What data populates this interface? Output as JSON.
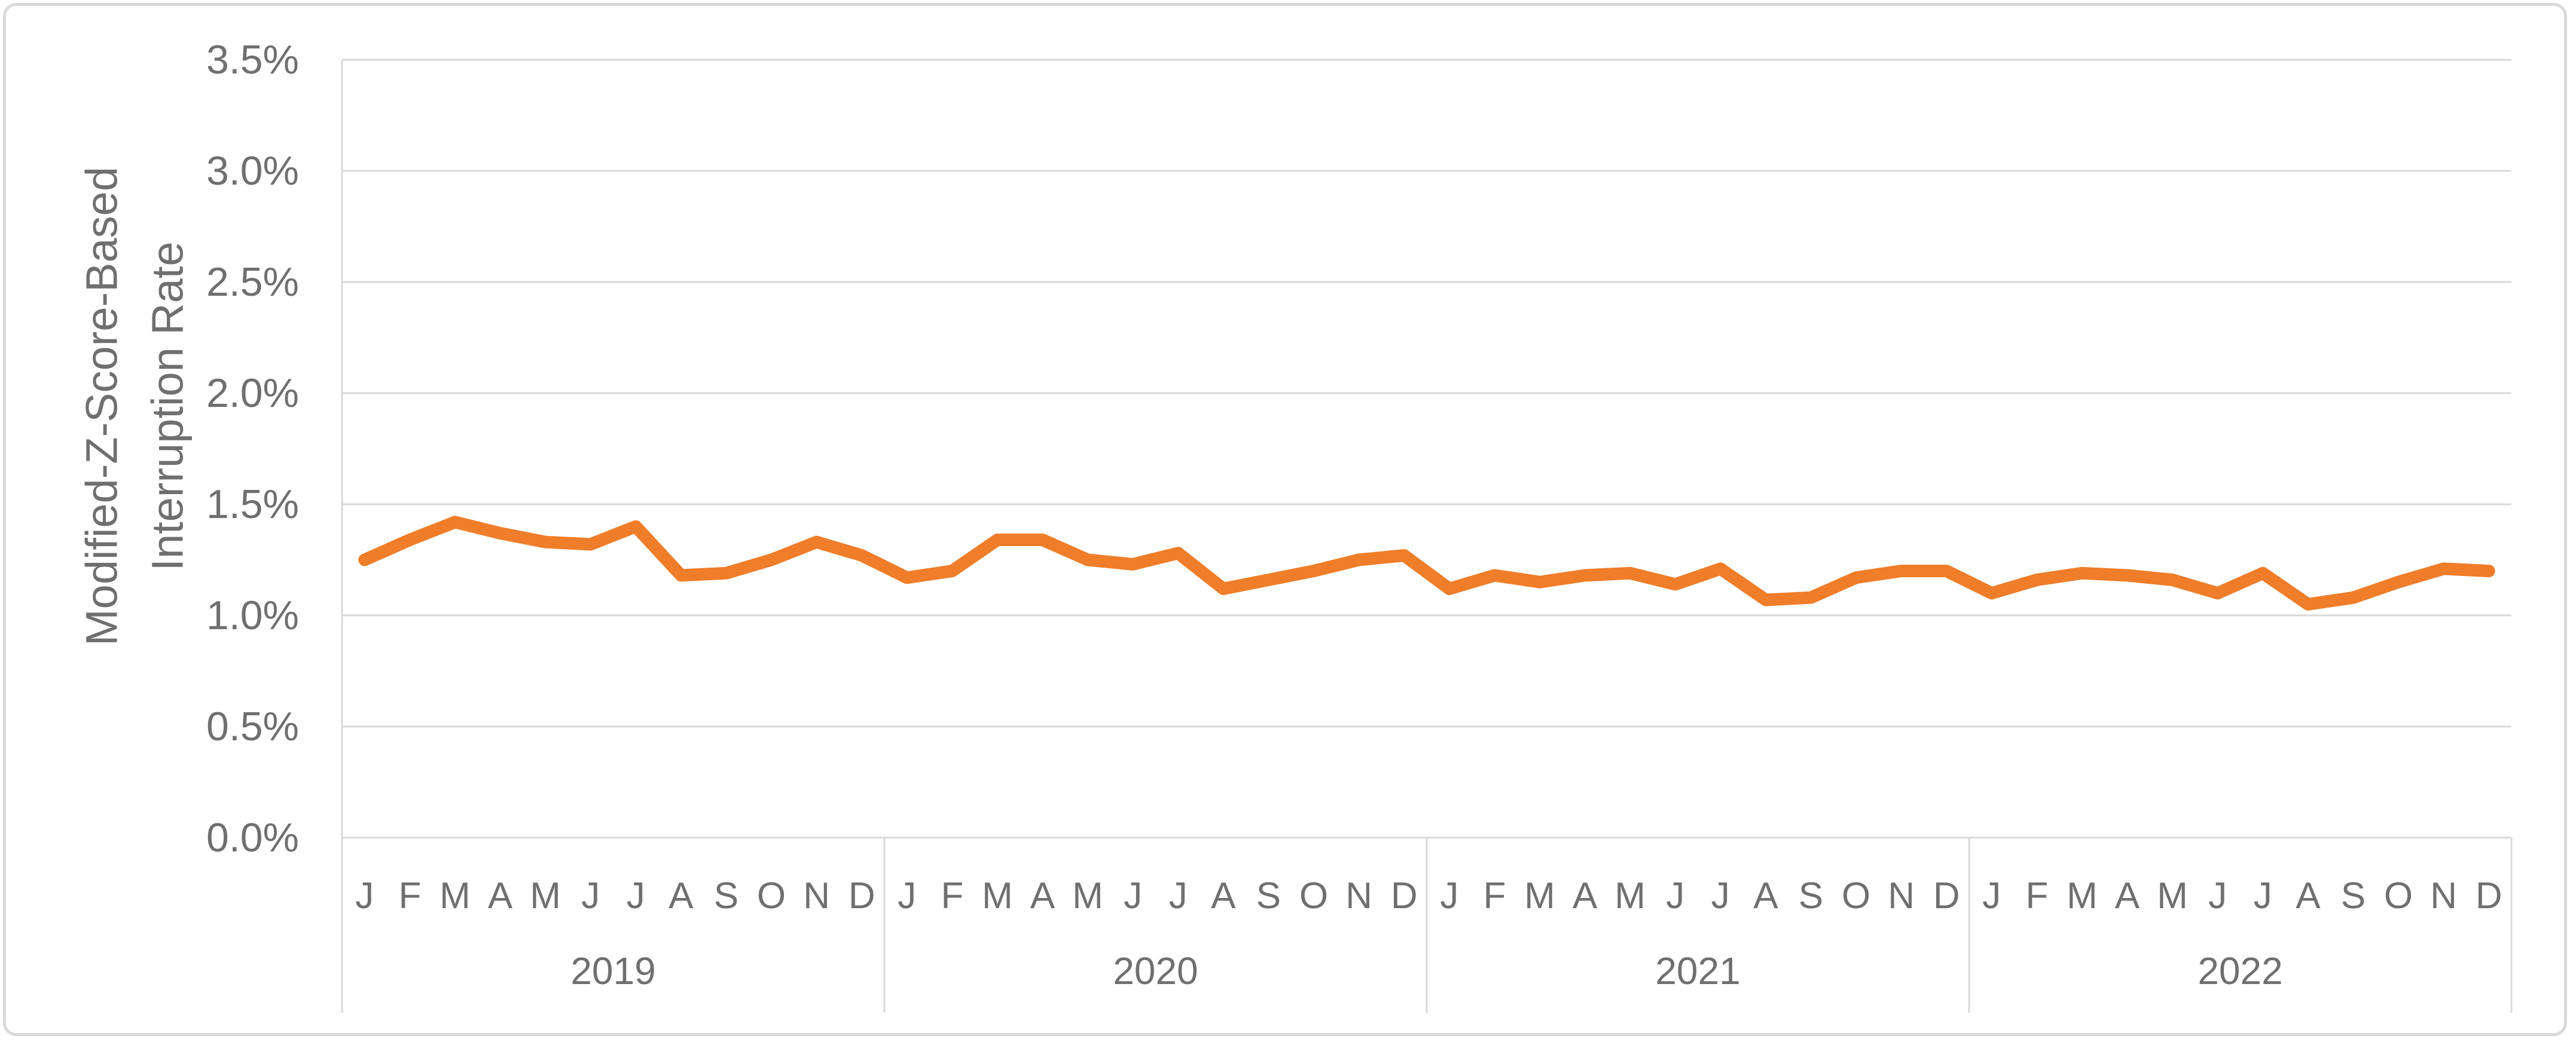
{
  "chart_data": {
    "type": "line",
    "title": "",
    "ylabel_lines": [
      "Modified-Z-Score-Based",
      "Interruption Rate"
    ],
    "ylabel": "Modified-Z-Score-Based Interruption Rate",
    "xlabel": "",
    "ylim": [
      0,
      3.5
    ],
    "y_unit": "%",
    "y_tick_values": [
      0.0,
      0.5,
      1.0,
      1.5,
      2.0,
      2.5,
      3.0,
      3.5
    ],
    "y_tick_labels": [
      "0.0%",
      "0.5%",
      "1.0%",
      "1.5%",
      "2.0%",
      "2.5%",
      "3.0%",
      "3.5%"
    ],
    "grid": true,
    "legend": false,
    "month_letters": [
      "J",
      "F",
      "M",
      "A",
      "M",
      "J",
      "J",
      "A",
      "S",
      "O",
      "N",
      "D"
    ],
    "year_groups": [
      {
        "year": "2019",
        "values": [
          1.25,
          1.34,
          1.42,
          1.37,
          1.33,
          1.32,
          1.4,
          1.18,
          1.19,
          1.25,
          1.33,
          1.27
        ]
      },
      {
        "year": "2020",
        "values": [
          1.17,
          1.2,
          1.34,
          1.34,
          1.25,
          1.23,
          1.28,
          1.12,
          1.16,
          1.2,
          1.25,
          1.27
        ]
      },
      {
        "year": "2021",
        "values": [
          1.12,
          1.18,
          1.15,
          1.18,
          1.19,
          1.14,
          1.21,
          1.07,
          1.08,
          1.17,
          1.2,
          1.2
        ]
      },
      {
        "year": "2022",
        "values": [
          1.1,
          1.16,
          1.19,
          1.18,
          1.16,
          1.1,
          1.19,
          1.05,
          1.08,
          1.15,
          1.21,
          1.2
        ]
      }
    ],
    "series": [
      {
        "name": "Modified-Z-Score-Based Interruption Rate",
        "color": "#EF7D29"
      }
    ],
    "colors": {
      "line": "#EF7D29",
      "grid": "#D9D9D9",
      "axis": "#D9D9D9",
      "border": "#D9D9D9",
      "text": "#6F6F6F",
      "background": "#FFFFFF"
    }
  }
}
